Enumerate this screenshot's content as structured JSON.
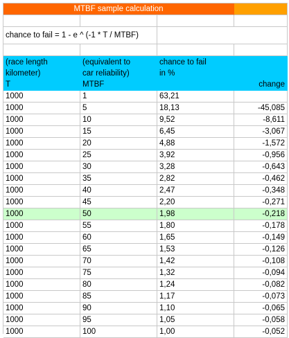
{
  "title": "MTBF sample calculation",
  "formula": "chance to fail = 1 - e ^ (-1 * T / MTBF)",
  "headers": {
    "col1": [
      "(race length",
      "kilometer)",
      "T"
    ],
    "col2": [
      "(equivalent to",
      "car reliability)",
      "MTBF"
    ],
    "col3": [
      "chance to fail",
      "in %",
      ""
    ],
    "col4": "change"
  },
  "highlight_row_index": 10,
  "colors": {
    "title_bg": "#ff6600",
    "title_side_bg": "#ffa000",
    "header_bg": "#00ccff",
    "highlight_bg": "#ccffcc"
  },
  "rows": [
    {
      "t": "1000",
      "mtbf": "1",
      "chance": "63,21",
      "change": ""
    },
    {
      "t": "1000",
      "mtbf": "5",
      "chance": "18,13",
      "change": "-45,085"
    },
    {
      "t": "1000",
      "mtbf": "10",
      "chance": "9,52",
      "change": "-8,611"
    },
    {
      "t": "1000",
      "mtbf": "15",
      "chance": "6,45",
      "change": "-3,067"
    },
    {
      "t": "1000",
      "mtbf": "20",
      "chance": "4,88",
      "change": "-1,572"
    },
    {
      "t": "1000",
      "mtbf": "25",
      "chance": "3,92",
      "change": "-0,956"
    },
    {
      "t": "1000",
      "mtbf": "30",
      "chance": "3,28",
      "change": "-0,643"
    },
    {
      "t": "1000",
      "mtbf": "35",
      "chance": "2,82",
      "change": "-0,462"
    },
    {
      "t": "1000",
      "mtbf": "40",
      "chance": "2,47",
      "change": "-0,348"
    },
    {
      "t": "1000",
      "mtbf": "45",
      "chance": "2,20",
      "change": "-0,271"
    },
    {
      "t": "1000",
      "mtbf": "50",
      "chance": "1,98",
      "change": "-0,218"
    },
    {
      "t": "1000",
      "mtbf": "55",
      "chance": "1,80",
      "change": "-0,178"
    },
    {
      "t": "1000",
      "mtbf": "60",
      "chance": "1,65",
      "change": "-0,149"
    },
    {
      "t": "1000",
      "mtbf": "65",
      "chance": "1,53",
      "change": "-0,126"
    },
    {
      "t": "1000",
      "mtbf": "70",
      "chance": "1,42",
      "change": "-0,108"
    },
    {
      "t": "1000",
      "mtbf": "75",
      "chance": "1,32",
      "change": "-0,094"
    },
    {
      "t": "1000",
      "mtbf": "80",
      "chance": "1,24",
      "change": "-0,082"
    },
    {
      "t": "1000",
      "mtbf": "85",
      "chance": "1,17",
      "change": "-0,073"
    },
    {
      "t": "1000",
      "mtbf": "90",
      "chance": "1,10",
      "change": "-0,065"
    },
    {
      "t": "1000",
      "mtbf": "95",
      "chance": "1,05",
      "change": "-0,058"
    },
    {
      "t": "1000",
      "mtbf": "100",
      "chance": "1,00",
      "change": "-0,052"
    }
  ]
}
